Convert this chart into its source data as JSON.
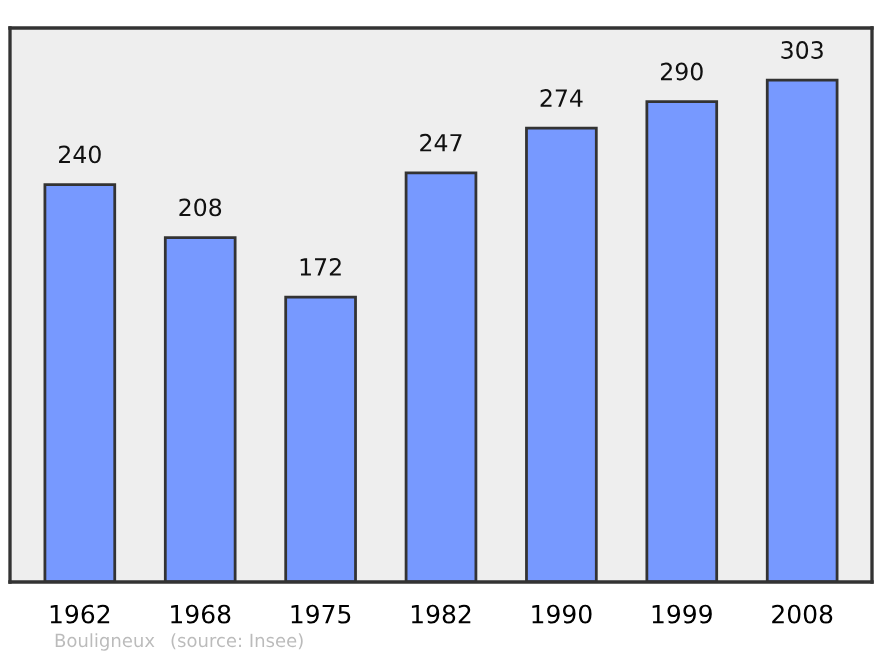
{
  "chart_data": {
    "type": "bar",
    "categories": [
      "1962",
      "1968",
      "1975",
      "1982",
      "1990",
      "1999",
      "2008"
    ],
    "values": [
      240,
      208,
      172,
      247,
      274,
      290,
      303
    ],
    "color": "#7799ff",
    "data_labels": true,
    "grid": false,
    "annotations": [
      "Bouligneux",
      "(source: Insee)"
    ]
  }
}
